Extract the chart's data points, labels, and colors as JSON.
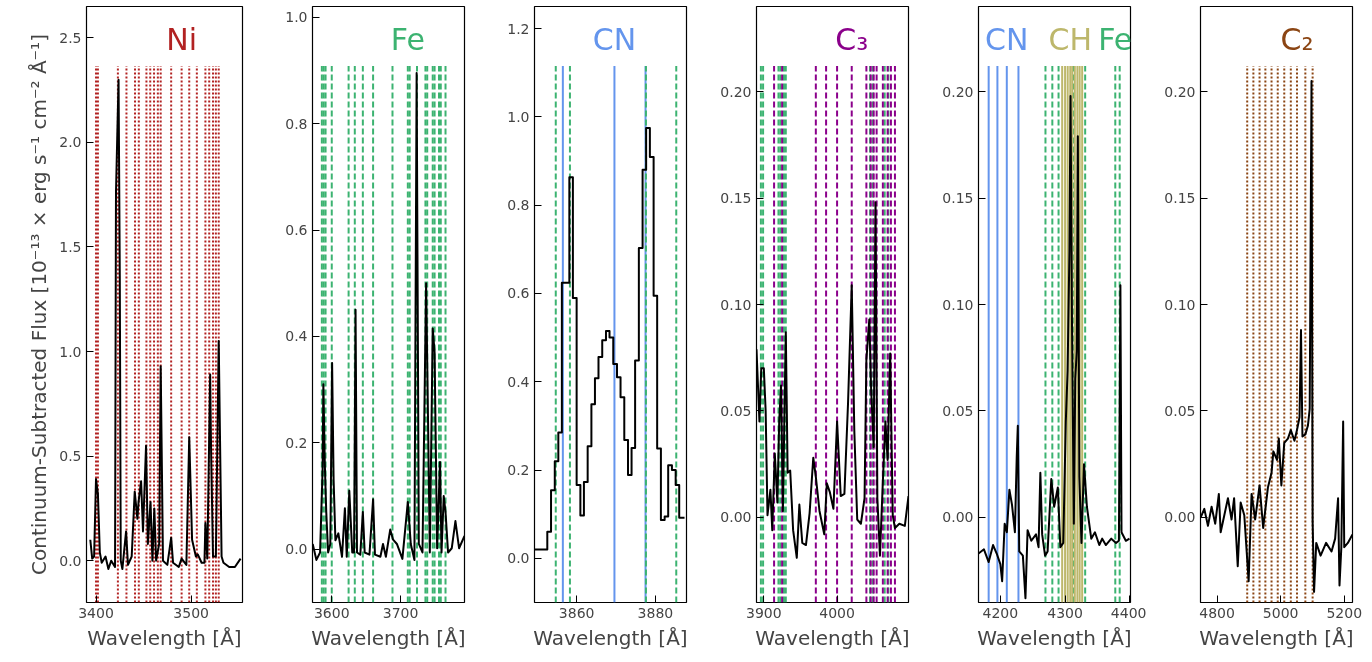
{
  "chart_data": [
    {
      "type": "line",
      "ylabel": "Continuum-Subtracted Flux [10⁻¹³ × erg s⁻¹ cm⁻² Å⁻¹]",
      "xlabel": "Wavelength [Å]",
      "xlim": [
        3390,
        3554
      ],
      "ylim": [
        -0.2,
        2.65
      ],
      "xticks": [
        3400,
        3500
      ],
      "yticks": [
        {
          "value": 0,
          "label": "0.0"
        },
        0.5,
        {
          "value": 1,
          "label": "1.0"
        },
        1.5,
        {
          "value": 2,
          "label": "2.0"
        },
        2.5
      ],
      "grid": false,
      "ref_lines": [
        {
          "axis": "x",
          "value": 3400,
          "color": "#b22222",
          "line_style": "dotted"
        },
        {
          "axis": "x",
          "value": 3402,
          "color": "#b22222",
          "line_style": "dotted"
        },
        {
          "axis": "x",
          "value": 3423,
          "color": "#b22222",
          "line_style": "dotted"
        },
        {
          "axis": "x",
          "value": 3432,
          "color": "#b22222",
          "line_style": "dotted"
        },
        {
          "axis": "x",
          "value": 3441,
          "color": "#b22222",
          "line_style": "dotted"
        },
        {
          "axis": "x",
          "value": 3445,
          "color": "#b22222",
          "line_style": "dotted"
        },
        {
          "axis": "x",
          "value": 3453,
          "color": "#b22222",
          "line_style": "dotted"
        },
        {
          "axis": "x",
          "value": 3457,
          "color": "#b22222",
          "line_style": "dotted"
        },
        {
          "axis": "x",
          "value": 3461,
          "color": "#b22222",
          "line_style": "dotted"
        },
        {
          "axis": "x",
          "value": 3465,
          "color": "#b22222",
          "line_style": "dotted"
        },
        {
          "axis": "x",
          "value": 3468,
          "color": "#b22222",
          "line_style": "dotted"
        },
        {
          "axis": "x",
          "value": 3479,
          "color": "#b22222",
          "line_style": "dotted"
        },
        {
          "axis": "x",
          "value": 3490,
          "label": "Ni",
          "color": "#b22222",
          "line_style": "dotted"
        },
        {
          "axis": "x",
          "value": 3498,
          "color": "#b22222",
          "line_style": "dotted"
        },
        {
          "axis": "x",
          "value": 3506,
          "color": "#b22222",
          "line_style": "dotted"
        },
        {
          "axis": "x",
          "value": 3515,
          "color": "#b22222",
          "line_style": "dotted"
        },
        {
          "axis": "x",
          "value": 3519,
          "color": "#b22222",
          "line_style": "dotted"
        },
        {
          "axis": "x",
          "value": 3523,
          "color": "#b22222",
          "line_style": "dotted"
        },
        {
          "axis": "x",
          "value": 3526,
          "color": "#b22222",
          "line_style": "dotted"
        },
        {
          "axis": "x",
          "value": 3529,
          "color": "#b22222",
          "line_style": "dotted"
        }
      ],
      "series": [
        {
          "color": "#000000",
          "x": [
            3394,
            3396,
            3398,
            3400,
            3402,
            3404,
            3406,
            3410,
            3413,
            3416,
            3420,
            3421,
            3423.7,
            3425,
            3426,
            3427.7,
            3431.6,
            3433.6,
            3437.5,
            3440.7,
            3443.5,
            3444.7,
            3447.4,
            3449.4,
            3452.6,
            3454.5,
            3457.3,
            3459.3,
            3461.3,
            3463.2,
            3466.4,
            3468,
            3470.4,
            3475,
            3479,
            3481,
            3487,
            3490,
            3495,
            3498,
            3501,
            3505,
            3507,
            3511,
            3514,
            3515,
            3517,
            3520,
            3521,
            3523,
            3526,
            3529,
            3532,
            3534,
            3540,
            3546,
            3552
          ],
          "values": [
            0.1,
            0.01,
            0.02,
            0.39,
            0.32,
            0.04,
            -0.01,
            0.02,
            -0.04,
            0.0,
            -0.03,
            1.76,
            2.3,
            1.36,
            0.0,
            -0.04,
            0.14,
            -0.02,
            0.02,
            0.33,
            0.2,
            0.28,
            0.38,
            0.14,
            0.55,
            0.08,
            0.28,
            0.0,
            0.25,
            0.0,
            0.08,
            0.93,
            0.0,
            -0.02,
            0.11,
            -0.01,
            -0.03,
            0.01,
            -0.02,
            0.59,
            0.1,
            0.02,
            0.03,
            -0.01,
            -0.01,
            0.18,
            0.01,
            0.89,
            0.52,
            0.02,
            0.02,
            1.05,
            0.02,
            -0.01,
            -0.03,
            -0.03,
            0.01
          ]
        }
      ]
    },
    {
      "type": "line",
      "xlabel": "Wavelength [Å]",
      "xlim": [
        3572,
        3793
      ],
      "ylim": [
        -0.1,
        1.02
      ],
      "xticks": [
        3600,
        3700
      ],
      "yticks": [
        {
          "value": 0,
          "label": "0.0"
        },
        0.2,
        0.4,
        0.6,
        0.8,
        {
          "value": 1,
          "label": "1.0"
        }
      ],
      "grid": false,
      "ref_lines": [
        {
          "axis": "x",
          "value": 3585.6,
          "color": "#3cb371",
          "line_style": "dashed"
        },
        {
          "axis": "x",
          "value": 3588.3,
          "color": "#3cb371",
          "line_style": "dashed"
        },
        {
          "axis": "x",
          "value": 3591,
          "color": "#3cb371",
          "line_style": "dashed"
        },
        {
          "axis": "x",
          "value": 3600,
          "color": "#3cb371",
          "line_style": "dashed"
        },
        {
          "axis": "x",
          "value": 3624.5,
          "color": "#3cb371",
          "line_style": "dashed"
        },
        {
          "axis": "x",
          "value": 3633.5,
          "color": "#3cb371",
          "line_style": "dashed"
        },
        {
          "axis": "x",
          "value": 3645.2,
          "color": "#3cb371",
          "line_style": "dashed"
        },
        {
          "axis": "x",
          "value": 3660.1,
          "color": "#3cb371",
          "line_style": "dashed"
        },
        {
          "axis": "x",
          "value": 3688.3,
          "color": "#3cb371",
          "line_style": "dashed"
        },
        {
          "axis": "x",
          "value": 3710.6,
          "label": "Fe",
          "color": "#3cb371",
          "line_style": "dashed"
        },
        {
          "axis": "x",
          "value": 3713.3,
          "color": "#3cb371",
          "line_style": "dashed"
        },
        {
          "axis": "x",
          "value": 3723.9,
          "color": "#3cb371",
          "line_style": "dashed"
        },
        {
          "axis": "x",
          "value": 3736.2,
          "color": "#3cb371",
          "line_style": "dashed"
        },
        {
          "axis": "x",
          "value": 3738.8,
          "color": "#3cb371",
          "line_style": "dashed"
        },
        {
          "axis": "x",
          "value": 3746.8,
          "color": "#3cb371",
          "line_style": "dashed"
        },
        {
          "axis": "x",
          "value": 3749.5,
          "color": "#3cb371",
          "line_style": "dashed"
        },
        {
          "axis": "x",
          "value": 3755.9,
          "color": "#3cb371",
          "line_style": "dashed"
        },
        {
          "axis": "x",
          "value": 3758.5,
          "color": "#3cb371",
          "line_style": "dashed"
        },
        {
          "axis": "x",
          "value": 3765.4,
          "color": "#3cb371",
          "line_style": "dashed"
        }
      ],
      "series": [
        {
          "color": "#000000",
          "x": [
            3572.3,
            3577.7,
            3583,
            3586.7,
            3587.8,
            3589.9,
            3592,
            3594.7,
            3597.9,
            3600.5,
            3602.7,
            3605.3,
            3609.6,
            3614.9,
            3619.1,
            3621.8,
            3625.5,
            3629.8,
            3632.4,
            3634.6,
            3636.7,
            3641.5,
            3645.2,
            3647.9,
            3654.8,
            3660.1,
            3662.8,
            3670.7,
            3674.5,
            3678.7,
            3685,
            3689.2,
            3694.7,
            3702.7,
            3710.6,
            3714.9,
            3720.2,
            3723.4,
            3726.6,
            3731.9,
            3737.2,
            3739.9,
            3742.6,
            3746.8,
            3749.5,
            3753.2,
            3757.4,
            3759.6,
            3762.8,
            3765.4,
            3769.1,
            3774.5,
            3779.8,
            3785.1,
            3793
          ],
          "values": [
            0.01,
            -0.02,
            -0.006,
            0.15,
            0.31,
            0.16,
            0.07,
            -0.006,
            0.01,
            0.35,
            0.13,
            0.017,
            0.03,
            -0.014,
            0.077,
            -0.014,
            0.11,
            -0.006,
            -0.006,
            0.45,
            -0.006,
            -0.01,
            0.07,
            -0.006,
            -0.01,
            0.094,
            -0.01,
            -0.014,
            0.01,
            -0.014,
            0.037,
            0.018,
            0.01,
            -0.018,
            0.089,
            0.01,
            -0.02,
            0.895,
            0.01,
            -0.006,
            0.5,
            0.25,
            -0.006,
            0.415,
            0.37,
            0.002,
            0.164,
            -0.006,
            0.1,
            0.07,
            -0.006,
            0.002,
            0.053,
            0.002,
            0.025
          ]
        }
      ]
    },
    {
      "type": "step",
      "xlabel": "Wavelength [Å]",
      "xlim": [
        3849.3,
        3887.9
      ],
      "ylim": [
        -0.1,
        1.25
      ],
      "xticks": [
        3860,
        3880
      ],
      "yticks": [
        {
          "value": 0,
          "label": "0.0"
        },
        0.2,
        0.4,
        0.6,
        0.8,
        {
          "value": 1,
          "label": "1.0"
        },
        1.2
      ],
      "grid": false,
      "ref_lines": [
        {
          "axis": "x",
          "value": 3856.5,
          "color": "#6495ed",
          "line_style": "solid"
        },
        {
          "axis": "x",
          "value": 3869.6,
          "label": "CN",
          "color": "#6495ed",
          "line_style": "solid"
        },
        {
          "axis": "x",
          "value": 3877.5,
          "color": "#6495ed",
          "line_style": "solid"
        },
        {
          "axis": "x",
          "value": 3854.7,
          "color": "#3cb371",
          "line_style": "dashed"
        },
        {
          "axis": "x",
          "value": 3858.3,
          "color": "#3cb371",
          "line_style": "dashed"
        },
        {
          "axis": "x",
          "value": 3877.6,
          "color": "#3cb371",
          "line_style": "dashed"
        },
        {
          "axis": "x",
          "value": 3885.3,
          "color": "#3cb371",
          "line_style": "dashed"
        }
      ],
      "series": [
        {
          "color": "#000000",
          "x": [
            3849.3,
            3850.2,
            3851.2,
            3852.1,
            3853.0,
            3854.0,
            3854.9,
            3855.8,
            3856.7,
            3857.7,
            3858.6,
            3859.5,
            3860.5,
            3861.4,
            3862.3,
            3863.3,
            3864.2,
            3865.1,
            3866.0,
            3867.0,
            3867.9,
            3868.8,
            3869.8,
            3870.7,
            3871.6,
            3872.6,
            3873.5,
            3874.4,
            3875.3,
            3876.3,
            3877.2,
            3878.1,
            3879.1,
            3880.0,
            3880.9,
            3881.9,
            3882.8,
            3883.7,
            3884.7,
            3885.6,
            3886.5,
            3887.4
          ],
          "values": [
            0.02,
            0.02,
            0.02,
            0.02,
            0.06,
            0.154,
            0.22,
            0.285,
            0.624,
            0.624,
            0.863,
            0.59,
            0.166,
            0.097,
            0.173,
            0.254,
            0.349,
            0.408,
            0.456,
            0.494,
            0.515,
            0.5,
            0.44,
            0.41,
            0.365,
            0.268,
            0.189,
            0.25,
            0.448,
            0.703,
            0.88,
            0.975,
            0.909,
            0.595,
            0.249,
            0.087,
            0.095,
            0.211,
            0.2,
            0.166,
            0.092,
            0.092
          ]
        }
      ]
    },
    {
      "type": "line",
      "xlabel": "Wavelength [Å]",
      "xlim": [
        3890,
        4097.5
      ],
      "ylim": [
        -0.04,
        0.24
      ],
      "xticks": [
        3900,
        4000
      ],
      "yticks": [
        {
          "value": 0,
          "label": "0.00"
        },
        0.05,
        {
          "value": 0.1,
          "label": "0.10"
        },
        0.15,
        {
          "value": 0.2,
          "label": "0.20"
        }
      ],
      "grid": false,
      "ref_lines": [
        {
          "axis": "x",
          "value": 3896,
          "color": "#3cb371",
          "line_style": "dashed"
        },
        {
          "axis": "x",
          "value": 3899,
          "color": "#3cb371",
          "line_style": "dashed"
        },
        {
          "axis": "x",
          "value": 3920,
          "color": "#3cb371",
          "line_style": "dashed"
        },
        {
          "axis": "x",
          "value": 3922.5,
          "color": "#3cb371",
          "line_style": "dashed"
        },
        {
          "axis": "x",
          "value": 3927.5,
          "color": "#3cb371",
          "line_style": "dashed"
        },
        {
          "axis": "x",
          "value": 3930,
          "color": "#3cb371",
          "line_style": "dashed"
        },
        {
          "axis": "x",
          "value": 4045,
          "color": "#3cb371",
          "line_style": "dashed"
        },
        {
          "axis": "x",
          "value": 4049,
          "color": "#3cb371",
          "line_style": "dashed"
        },
        {
          "axis": "x",
          "value": 4065,
          "color": "#3cb371",
          "line_style": "dashed"
        },
        {
          "axis": "x",
          "value": 4070,
          "color": "#3cb371",
          "line_style": "dashed"
        },
        {
          "axis": "x",
          "value": 3914,
          "color": "#8b008b",
          "line_style": "dashed"
        },
        {
          "axis": "x",
          "value": 3925,
          "color": "#8b008b",
          "line_style": "dashed"
        },
        {
          "axis": "x",
          "value": 3971,
          "color": "#8b008b",
          "line_style": "dashed"
        },
        {
          "axis": "x",
          "value": 3985,
          "color": "#8b008b",
          "line_style": "dashed"
        },
        {
          "axis": "x",
          "value": 4000,
          "color": "#8b008b",
          "line_style": "dashed"
        },
        {
          "axis": "x",
          "value": 4020,
          "label": "C₃",
          "color": "#8b008b",
          "line_style": "dashed"
        },
        {
          "axis": "x",
          "value": 4040,
          "color": "#8b008b",
          "line_style": "dashed"
        },
        {
          "axis": "x",
          "value": 4046,
          "color": "#8b008b",
          "line_style": "dashed"
        },
        {
          "axis": "x",
          "value": 4050,
          "color": "#8b008b",
          "line_style": "dashed"
        },
        {
          "axis": "x",
          "value": 4054,
          "color": "#8b008b",
          "line_style": "dashed"
        },
        {
          "axis": "x",
          "value": 4062.5,
          "color": "#8b008b",
          "line_style": "dashed"
        },
        {
          "axis": "x",
          "value": 4069,
          "color": "#8b008b",
          "line_style": "dashed"
        },
        {
          "axis": "x",
          "value": 4073.5,
          "color": "#8b008b",
          "line_style": "dashed"
        },
        {
          "axis": "x",
          "value": 4079,
          "color": "#8b008b",
          "line_style": "dashed"
        }
      ],
      "series": [
        {
          "color": "#000000",
          "x": [
            3890,
            3894,
            3896.5,
            3900,
            3902.5,
            3905,
            3909,
            3911.5,
            3915,
            3918.5,
            3921,
            3923.5,
            3926,
            3930,
            3932.5,
            3936,
            3940,
            3945,
            3948.5,
            3952.5,
            3957.5,
            3962.5,
            3967.5,
            3971,
            3976,
            3982.5,
            3986,
            3990,
            3995,
            4000,
            4005,
            4010,
            4015,
            4020,
            4023.5,
            4027.5,
            4032.5,
            4037.5,
            4040,
            4044,
            4046.5,
            4050,
            4052.5,
            4055,
            4058.5,
            4062.5,
            4066,
            4069,
            4072.5,
            4076,
            4079,
            4085,
            4092.5,
            4097.5
          ],
          "values": [
            0.079,
            0.045,
            0.07,
            0.07,
            0.05,
            0.001,
            0.013,
            -0.006,
            0.03,
            0.007,
            0.045,
            0.062,
            0.003,
            0.087,
            0.021,
            0.022,
            -0.006,
            -0.019,
            0.006,
            -0.012,
            -0.013,
            0.002,
            0.028,
            0.019,
            0.003,
            -0.008,
            0.016,
            0.012,
            0.004,
            0.045,
            0.01,
            0.011,
            0.054,
            0.109,
            0.041,
            -0.001,
            -0.003,
            0.009,
            0.074,
            0.093,
            0.06,
            0.033,
            0.148,
            0.009,
            -0.018,
            0.017,
            0.045,
            0.027,
            0.077,
            0.001,
            -0.005,
            -0.003,
            -0.004,
            0.01
          ]
        }
      ]
    },
    {
      "type": "line",
      "xlabel": "Wavelength [Å]",
      "xlim": [
        4166.3,
        4401
      ],
      "ylim": [
        -0.04,
        0.24
      ],
      "xticks": [
        4200,
        4300,
        4400
      ],
      "yticks": [
        {
          "value": 0,
          "label": "0.00"
        },
        0.05,
        {
          "value": 0.1,
          "label": "0.10"
        },
        0.15,
        {
          "value": 0.2,
          "label": "0.20"
        }
      ],
      "grid": false,
      "ref_lines": [
        {
          "axis": "x",
          "value": 4182,
          "color": "#6495ed",
          "line_style": "solid"
        },
        {
          "axis": "x",
          "value": 4195.5,
          "color": "#6495ed",
          "line_style": "solid"
        },
        {
          "axis": "x",
          "value": 4210,
          "label": "CN",
          "color": "#6495ed",
          "line_style": "solid"
        },
        {
          "axis": "x",
          "value": 4228,
          "color": "#6495ed",
          "line_style": "solid"
        },
        {
          "axis": "x",
          "value": 4269.7,
          "color": "#3cb371",
          "line_style": "dashed"
        },
        {
          "axis": "x",
          "value": 4280.3,
          "color": "#3cb371",
          "line_style": "dashed"
        },
        {
          "axis": "x",
          "value": 4289.9,
          "color": "#3cb371",
          "line_style": "dashed"
        },
        {
          "axis": "x",
          "value": 4313.5,
          "color": "#3cb371",
          "line_style": "dashed"
        },
        {
          "axis": "x",
          "value": 4331,
          "color": "#3cb371",
          "line_style": "dashed"
        },
        {
          "axis": "x",
          "value": 4377.5,
          "label": "Fe",
          "color": "#3cb371",
          "line_style": "dashed"
        },
        {
          "axis": "x",
          "value": 4384.3,
          "color": "#3cb371",
          "line_style": "dashed"
        },
        {
          "axis": "x",
          "value": 4295.5,
          "color": "#bdb76b",
          "line_style": "solid"
        },
        {
          "axis": "x",
          "value": 4300,
          "color": "#bdb76b",
          "line_style": "solid"
        },
        {
          "axis": "x",
          "value": 4304,
          "color": "#bdb76b",
          "line_style": "solid"
        },
        {
          "axis": "x",
          "value": 4308,
          "label": "CH",
          "color": "#bdb76b",
          "line_style": "solid"
        },
        {
          "axis": "x",
          "value": 4311,
          "color": "#bdb76b",
          "line_style": "solid"
        },
        {
          "axis": "x",
          "value": 4315,
          "color": "#bdb76b",
          "line_style": "solid"
        },
        {
          "axis": "x",
          "value": 4319,
          "color": "#bdb76b",
          "line_style": "solid"
        },
        {
          "axis": "x",
          "value": 4322.5,
          "color": "#bdb76b",
          "line_style": "solid"
        },
        {
          "axis": "x",
          "value": 4326.4,
          "color": "#bdb76b",
          "line_style": "solid"
        }
      ],
      "series": [
        {
          "color": "#000000",
          "x": [
            4166.3,
            4174.7,
            4182,
            4188.8,
            4194.4,
            4200,
            4202.8,
            4206.7,
            4210.1,
            4214,
            4218,
            4222.5,
            4225.3,
            4227,
            4229.2,
            4234.8,
            4238.8,
            4242.1,
            4247.8,
            4255.1,
            4259,
            4261.8,
            4264.6,
            4269.1,
            4273,
            4278.7,
            4283.1,
            4288.8,
            4292.7,
            4297.2,
            4301.1,
            4303.9,
            4306.7,
            4308.4,
            4310.7,
            4313.5,
            4315.7,
            4318,
            4319.7,
            4322,
            4325.3,
            4329.2,
            4333.7,
            4340.4,
            4346.1,
            4352.8,
            4357.3,
            4362.9,
            4371.3,
            4378.7,
            4383.1,
            4385.4,
            4387.1,
            4393.8,
            4399.4
          ],
          "values": [
            -0.017,
            -0.015,
            -0.021,
            -0.013,
            -0.017,
            -0.022,
            -0.03,
            -0.003,
            -0.007,
            0.013,
            0.006,
            -0.007,
            0.028,
            0.043,
            -0.016,
            -0.018,
            -0.038,
            -0.006,
            -0.011,
            -0.008,
            -0.014,
            0.021,
            -0.008,
            -0.018,
            -0.016,
            0.018,
            0.005,
            0.014,
            -0.014,
            -0.012,
            0.045,
            0.069,
            0.125,
            0.198,
            0.09,
            -0.003,
            0.065,
            0.078,
            0.179,
            0.019,
            -0.012,
            0.025,
            0.005,
            -0.01,
            -0.007,
            -0.013,
            -0.01,
            -0.013,
            -0.01,
            -0.012,
            -0.011,
            0.109,
            -0.007,
            -0.011,
            -0.01
          ]
        }
      ]
    },
    {
      "type": "line",
      "xlabel": "Wavelength [Å]",
      "xlim": [
        4748,
        5226
      ],
      "ylim": [
        -0.04,
        0.24
      ],
      "xticks": [
        4800,
        5000,
        5200
      ],
      "yticks": [
        {
          "value": 0,
          "label": "0.00"
        },
        0.05,
        {
          "value": 0.1,
          "label": "0.10"
        },
        0.15,
        {
          "value": 0.2,
          "label": "0.20"
        }
      ],
      "grid": false,
      "ref_lines": [
        {
          "axis": "x",
          "value": 4894.9,
          "color": "#8b4513",
          "line_style": "dotted"
        },
        {
          "axis": "x",
          "value": 4914.3,
          "color": "#8b4513",
          "line_style": "dotted"
        },
        {
          "axis": "x",
          "value": 4933.7,
          "color": "#8b4513",
          "line_style": "dotted"
        },
        {
          "axis": "x",
          "value": 4952,
          "color": "#8b4513",
          "line_style": "dotted"
        },
        {
          "axis": "x",
          "value": 4971.4,
          "color": "#8b4513",
          "line_style": "dotted"
        },
        {
          "axis": "x",
          "value": 4990.9,
          "color": "#8b4513",
          "line_style": "dotted"
        },
        {
          "axis": "x",
          "value": 5011.4,
          "color": "#8b4513",
          "line_style": "dotted"
        },
        {
          "axis": "x",
          "value": 5032,
          "color": "#8b4513",
          "line_style": "dotted"
        },
        {
          "axis": "x",
          "value": 5051.4,
          "label": "C₂",
          "color": "#8b4513",
          "line_style": "dotted"
        },
        {
          "axis": "x",
          "value": 5077.7,
          "color": "#8b4513",
          "line_style": "dotted"
        },
        {
          "axis": "x",
          "value": 5100.6,
          "color": "#8b4513",
          "line_style": "dotted"
        }
      ],
      "series": [
        {
          "color": "#000000",
          "x": [
            4748.6,
            4760,
            4771.4,
            4782.9,
            4794.3,
            4805.7,
            4811.4,
            4822.9,
            4834.3,
            4845.7,
            4853.7,
            4865.1,
            4874.3,
            4885.7,
            4899.4,
            4908.6,
            4920,
            4933.7,
            4945.1,
            4960,
            4971.4,
            4977.1,
            4988.6,
            4994.3,
            5002.3,
            5011.4,
            5022.9,
            5032,
            5043.4,
            5051.4,
            5059.4,
            5064,
            5068.6,
            5077.7,
            5085.7,
            5091.4,
            5097.1,
            5100.6,
            5105.1,
            5112,
            5125.7,
            5142.9,
            5160,
            5171.4,
            5180.6,
            5185.1,
            5190.9,
            5196.6,
            5200,
            5211.4,
            5226
          ],
          "values": [
            0.0,
            0.004,
            -0.004,
            0.005,
            -0.003,
            0.011,
            -0.007,
            0.001,
            0.009,
            -0.001,
            0.009,
            -0.023,
            0.007,
            0.001,
            -0.03,
            0.011,
            -0.001,
            0.015,
            -0.005,
            0.014,
            0.021,
            0.031,
            0.027,
            0.037,
            0.015,
            0.035,
            0.037,
            0.041,
            0.036,
            0.041,
            0.047,
            0.088,
            0.038,
            0.039,
            0.043,
            0.051,
            0.205,
            -0.002,
            -0.035,
            -0.012,
            -0.018,
            -0.012,
            -0.016,
            -0.01,
            0.009,
            -0.032,
            -0.014,
            0.045,
            -0.014,
            -0.012,
            -0.008
          ]
        }
      ]
    }
  ]
}
